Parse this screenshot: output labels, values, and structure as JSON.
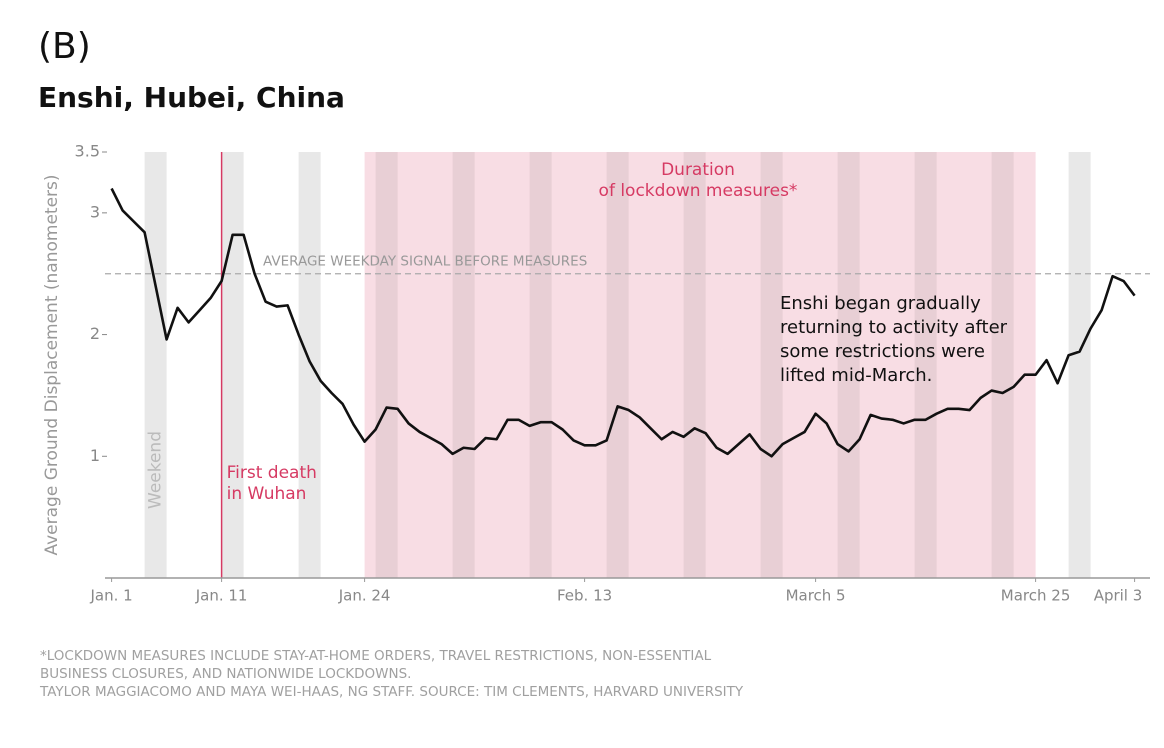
{
  "chart_data": {
    "type": "line",
    "panel": "(B)",
    "title": "Enshi, Hubei, China",
    "ylabel": "Average Ground Displacement (nanometers)",
    "x": [
      0,
      1,
      2,
      3,
      4,
      5,
      6,
      7,
      8,
      9,
      10,
      11,
      12,
      13,
      14,
      15,
      16,
      17,
      18,
      19,
      20,
      21,
      22,
      23,
      24,
      25,
      26,
      27,
      28,
      29,
      30,
      31,
      32,
      33,
      34,
      35,
      36,
      37,
      38,
      39,
      40,
      41,
      42,
      43,
      44,
      45,
      46,
      47,
      48,
      49,
      50,
      51,
      52,
      53,
      54,
      55,
      56,
      57,
      58,
      59,
      60,
      61,
      62,
      63,
      64,
      65,
      66,
      67,
      68,
      69,
      70,
      71,
      72,
      73,
      74,
      75,
      76,
      77,
      78,
      79,
      80,
      81,
      82,
      83,
      84,
      85,
      86,
      87,
      88,
      89,
      90,
      91,
      92,
      93
    ],
    "values": [
      3.2,
      3.02,
      2.93,
      2.84,
      2.4,
      1.96,
      2.22,
      2.1,
      2.2,
      2.3,
      2.44,
      2.82,
      2.82,
      2.5,
      2.27,
      2.23,
      2.24,
      2.0,
      1.78,
      1.62,
      1.52,
      1.43,
      1.26,
      1.12,
      1.22,
      1.4,
      1.39,
      1.27,
      1.2,
      1.15,
      1.1,
      1.02,
      1.07,
      1.06,
      1.15,
      1.14,
      1.3,
      1.3,
      1.25,
      1.28,
      1.28,
      1.22,
      1.13,
      1.09,
      1.09,
      1.13,
      1.41,
      1.38,
      1.32,
      1.23,
      1.14,
      1.2,
      1.16,
      1.23,
      1.19,
      1.07,
      1.02,
      1.1,
      1.18,
      1.06,
      1.0,
      1.1,
      1.15,
      1.2,
      1.35,
      1.27,
      1.1,
      1.04,
      1.14,
      1.34,
      1.31,
      1.3,
      1.27,
      1.3,
      1.3,
      1.35,
      1.39,
      1.39,
      1.38,
      1.48,
      1.54,
      1.52,
      1.57,
      1.67,
      1.67,
      1.79,
      1.6,
      1.83,
      1.86,
      2.05,
      2.2,
      2.48,
      2.44,
      2.32
    ],
    "color": "#111111",
    "xlim": [
      -0.6,
      94.4
    ],
    "xticks": [
      {
        "value": 0,
        "label": "Jan. 1"
      },
      {
        "value": 10,
        "label": "Jan. 11"
      },
      {
        "value": 23,
        "label": "Jan. 24"
      },
      {
        "value": 43,
        "label": "Feb. 13"
      },
      {
        "value": 64,
        "label": "March 5"
      },
      {
        "value": 84,
        "label": "March 25"
      },
      {
        "value": 93,
        "label": "April 3"
      }
    ],
    "ylim": [
      0,
      3.5
    ],
    "yticks": [
      1,
      2,
      3,
      3.5
    ],
    "weekends": {
      "label": "Weekend",
      "color": "#e4e4e4",
      "ranges": [
        [
          3,
          5
        ],
        [
          10,
          12
        ],
        [
          17,
          19
        ],
        [
          24,
          26
        ],
        [
          31,
          33
        ],
        [
          38,
          40
        ],
        [
          45,
          47
        ],
        [
          52,
          54
        ],
        [
          59,
          61
        ],
        [
          66,
          68
        ],
        [
          73,
          75
        ],
        [
          80,
          82
        ],
        [
          87,
          89
        ]
      ]
    },
    "lockdown": {
      "range": [
        23,
        84
      ],
      "color": "#f8dde4",
      "label": [
        "Duration",
        "of lockdown measures*"
      ]
    },
    "first_death": {
      "x": 10,
      "color": "#d63a63",
      "label": [
        "First death",
        "in Wuhan"
      ]
    },
    "reference_line": {
      "y": 2.5,
      "label": "AVERAGE WEEKDAY SIGNAL BEFORE MEASURES"
    },
    "note": [
      "Enshi began gradually",
      "returning to activity after",
      "some restrictions were",
      "lifted mid-March."
    ],
    "footnote": [
      "*LOCKDOWN MEASURES INCLUDE STAY-AT-HOME ORDERS, TRAVEL RESTRICTIONS, NON-ESSENTIAL",
      "BUSINESS CLOSURES, AND NATIONWIDE LOCKDOWNS.",
      "TAYLOR MAGGIACOMO AND MAYA WEI-HAAS, NG STAFF. SOURCE: TIM CLEMENTS, HARVARD UNIVERSITY"
    ]
  }
}
